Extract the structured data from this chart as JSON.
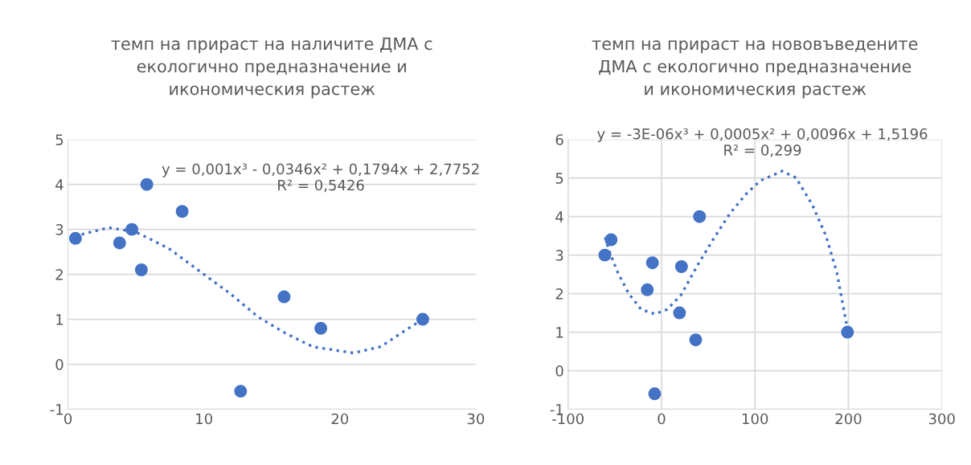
{
  "chart_data": [
    {
      "type": "scatter",
      "title": "темп на прираст на наличите ДМА с\nекологично предназначение и\nикономическия растеж",
      "xlim": [
        0,
        30
      ],
      "xticks": [
        0,
        10,
        20,
        30
      ],
      "ylim": [
        -1,
        5
      ],
      "yticks": [
        {
          "value": -1,
          "label": "-1"
        },
        0,
        1,
        2,
        3,
        4,
        5
      ],
      "grid": "y",
      "legend": false,
      "annotations": [
        "y = 0,001x³ - 0,0346x² + 0,1794x + 2,7752\nR² = 0,5426"
      ],
      "series": [
        {
          "marker": "circle",
          "color": "#4472c4",
          "x": [
            0.55,
            3.8,
            4.7,
            5.4,
            5.8,
            8.4,
            12.7,
            15.9,
            18.6,
            26.1
          ],
          "values": [
            2.8,
            2.7,
            3.0,
            2.1,
            4.0,
            3.4,
            -0.6,
            1.5,
            0.8,
            1.0
          ]
        },
        {
          "type": "line",
          "line_style": "dotted",
          "color": "#4472c4",
          "x": [
            0.5,
            3,
            5,
            7.4,
            10,
            11.9,
            14,
            16,
            18,
            21,
            23,
            24.5,
            26.1
          ],
          "values": [
            2.85,
            3.04,
            2.94,
            2.58,
            2.0,
            1.58,
            1.05,
            0.69,
            0.39,
            0.25,
            0.39,
            0.69,
            1.0
          ]
        }
      ]
    },
    {
      "type": "scatter",
      "title": "темп на прираст на нововъведените\nДМА с екологично предназначение\nи икономическия растеж",
      "xlim": [
        -100,
        300
      ],
      "xticks": [
        {
          "value": -100,
          "label": "-100"
        },
        0,
        100,
        200,
        300
      ],
      "ylim": [
        -1,
        6
      ],
      "yticks": [
        {
          "value": -1,
          "label": "-1"
        },
        0,
        1,
        2,
        3,
        4,
        5,
        6
      ],
      "grid": true,
      "legend": false,
      "annotations": [
        "y = -3E-06x³ + 0,0005x² + 0,0096x + 1,5196\nR² = 0,299"
      ],
      "series": [
        {
          "marker": "circle",
          "color": "#4472c4",
          "x": [
            -60.6,
            -53.9,
            -9.7,
            -15.2,
            -7.3,
            21.4,
            19.3,
            40.7,
            36.6,
            199
          ],
          "values": [
            3.0,
            3.4,
            2.8,
            2.1,
            -0.6,
            2.7,
            1.5,
            4.0,
            0.8,
            1.0
          ]
        },
        {
          "type": "line",
          "line_style": "dotted",
          "color": "#4472c4",
          "x": [
            -60.3,
            -55.3,
            -46.6,
            -34.8,
            -21.7,
            -7,
            6.1,
            20.8,
            38.4,
            55.9,
            73.5,
            91.1,
            105.7,
            129.1,
            143.8,
            161.3,
            176,
            187.7,
            197.9
          ],
          "values": [
            3.46,
            3.06,
            2.54,
            1.99,
            1.59,
            1.47,
            1.59,
            1.96,
            2.73,
            3.43,
            4.09,
            4.6,
            4.93,
            5.18,
            5.01,
            4.31,
            3.5,
            2.54,
            1.22
          ]
        }
      ]
    }
  ]
}
